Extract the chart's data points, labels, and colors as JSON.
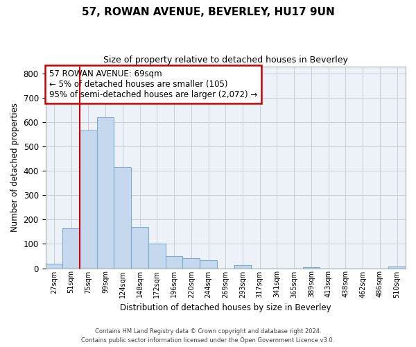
{
  "title": "57, ROWAN AVENUE, BEVERLEY, HU17 9UN",
  "subtitle": "Size of property relative to detached houses in Beverley",
  "xlabel": "Distribution of detached houses by size in Beverley",
  "ylabel": "Number of detached properties",
  "bin_labels": [
    "27sqm",
    "51sqm",
    "75sqm",
    "99sqm",
    "124sqm",
    "148sqm",
    "172sqm",
    "196sqm",
    "220sqm",
    "244sqm",
    "269sqm",
    "293sqm",
    "317sqm",
    "341sqm",
    "365sqm",
    "389sqm",
    "413sqm",
    "438sqm",
    "462sqm",
    "486sqm",
    "510sqm"
  ],
  "bar_heights": [
    20,
    165,
    565,
    620,
    415,
    170,
    100,
    50,
    40,
    33,
    0,
    12,
    0,
    0,
    0,
    5,
    0,
    0,
    0,
    0,
    8
  ],
  "bar_color": "#c5d8ed",
  "bar_edge_color": "#7aaed0",
  "vline_color": "#cc0000",
  "ylim": [
    0,
    830
  ],
  "yticks": [
    0,
    100,
    200,
    300,
    400,
    500,
    600,
    700,
    800
  ],
  "annotation_title": "57 ROWAN AVENUE: 69sqm",
  "annotation_line1": "← 5% of detached houses are smaller (105)",
  "annotation_line2": "95% of semi-detached houses are larger (2,072) →",
  "footer_line1": "Contains HM Land Registry data © Crown copyright and database right 2024.",
  "footer_line2": "Contains public sector information licensed under the Open Government Licence v3.0.",
  "bg_color": "#ffffff",
  "axes_bg_color": "#edf2f8",
  "grid_color": "#c8cdd4"
}
